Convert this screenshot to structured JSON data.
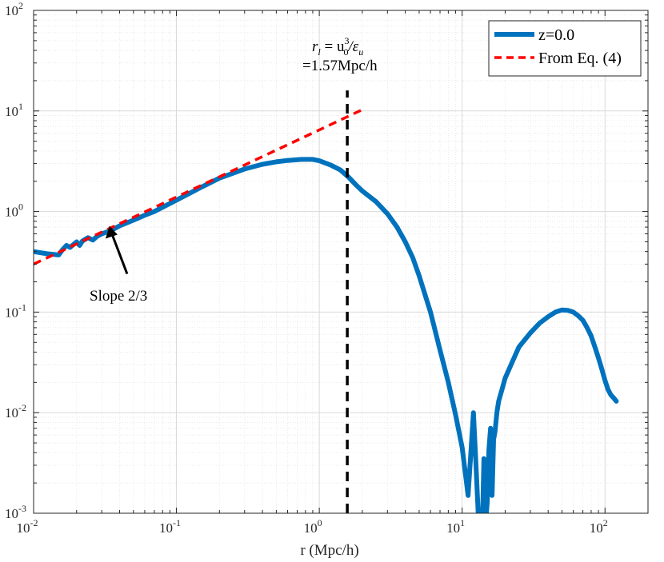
{
  "chart_data": {
    "type": "line",
    "xscale": "log",
    "yscale": "log",
    "xlim": [
      0.01,
      200
    ],
    "ylim": [
      0.001,
      100
    ],
    "xlabel": "r (Mpc/h)",
    "ylabel": "",
    "grid": true,
    "minor_grid": true,
    "legend_position": "top-right",
    "x_ticks": [
      {
        "value": 0.01,
        "base": "10",
        "exp": "-2"
      },
      {
        "value": 0.1,
        "base": "10",
        "exp": "-1"
      },
      {
        "value": 1,
        "base": "10",
        "exp": "0"
      },
      {
        "value": 10,
        "base": "10",
        "exp": "1"
      },
      {
        "value": 100,
        "base": "10",
        "exp": "2"
      }
    ],
    "y_ticks": [
      {
        "value": 0.001,
        "base": "10",
        "exp": "-3"
      },
      {
        "value": 0.01,
        "base": "10",
        "exp": "-2"
      },
      {
        "value": 0.1,
        "base": "10",
        "exp": "-1"
      },
      {
        "value": 1,
        "base": "10",
        "exp": "0"
      },
      {
        "value": 10,
        "base": "10",
        "exp": "1"
      },
      {
        "value": 100,
        "base": "10",
        "exp": "2"
      }
    ],
    "series": [
      {
        "name": "z=0.0",
        "color": "#0072BD",
        "style": "solid",
        "x": [
          0.01,
          0.0125,
          0.015,
          0.016,
          0.017,
          0.018,
          0.019,
          0.02,
          0.021,
          0.022,
          0.024,
          0.026,
          0.028,
          0.03,
          0.033,
          0.035,
          0.04,
          0.05,
          0.06,
          0.07,
          0.1,
          0.15,
          0.2,
          0.3,
          0.4,
          0.5,
          0.6,
          0.75,
          0.9,
          1.0,
          1.2,
          1.4,
          1.6,
          1.8,
          2.0,
          2.5,
          3.0,
          3.5,
          4.0,
          4.5,
          5.0,
          6.0,
          7.0,
          8.0,
          9.0,
          10.0,
          11.0,
          12.0,
          12.5,
          13.0,
          13.4,
          13.8,
          14.2,
          14.6,
          15.0,
          15.4,
          15.8,
          16.2,
          16.6,
          17.0,
          17.5,
          18.0,
          19.0,
          20.0,
          22.0,
          25.0,
          30.0,
          35.0,
          40.0,
          45.0,
          50.0,
          55.0,
          60.0,
          65.0,
          70.0,
          75.0,
          80.0,
          85.0,
          90.0,
          95.0,
          100.0,
          105.0,
          110.0,
          115.0,
          120.0
        ],
        "values": [
          0.4,
          0.38,
          0.37,
          0.42,
          0.46,
          0.44,
          0.47,
          0.5,
          0.46,
          0.51,
          0.55,
          0.52,
          0.57,
          0.6,
          0.63,
          0.65,
          0.72,
          0.82,
          0.92,
          1.0,
          1.3,
          1.75,
          2.15,
          2.65,
          2.95,
          3.12,
          3.22,
          3.3,
          3.3,
          3.2,
          2.9,
          2.6,
          2.2,
          1.85,
          1.6,
          1.25,
          0.95,
          0.7,
          0.5,
          0.35,
          0.23,
          0.1,
          0.042,
          0.02,
          0.0095,
          0.0045,
          0.0015,
          0.01,
          0.003,
          0.0009,
          0.0007,
          0.0006,
          0.0035,
          0.0008,
          0.0013,
          0.0044,
          0.007,
          0.0015,
          0.0054,
          0.0065,
          0.01,
          0.013,
          0.017,
          0.022,
          0.03,
          0.045,
          0.062,
          0.078,
          0.09,
          0.1,
          0.105,
          0.104,
          0.1,
          0.092,
          0.083,
          0.07,
          0.058,
          0.045,
          0.035,
          0.027,
          0.021,
          0.017,
          0.015,
          0.014,
          0.013
        ]
      },
      {
        "name": "From Eq. (4)",
        "color": "#FF0000",
        "style": "dashed",
        "x": [
          0.01,
          2.0
        ],
        "values": [
          0.3,
          10.3
        ]
      }
    ],
    "annotations": [
      {
        "kind": "vline",
        "x": 1.57,
        "y_from": 0.001,
        "y_to": 16,
        "style": "dashed",
        "color": "#000000"
      },
      {
        "kind": "text",
        "line1": "r",
        "line1_sub": "l",
        "line1_mid": " = u",
        "line1_sub2": "0",
        "line1_sup2": "3",
        "line1_end": "/ε",
        "line1_sub3": "u",
        "line2": "=1.57Mpc/h"
      },
      {
        "kind": "arrow",
        "label": "Slope 2/3",
        "tip_x": 0.034,
        "tip_y": 0.72
      }
    ]
  }
}
